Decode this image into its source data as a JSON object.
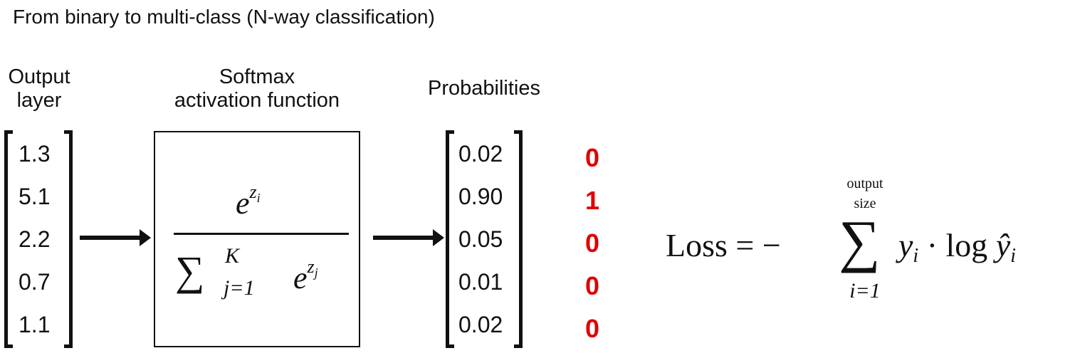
{
  "title": "From binary to multi-class (N-way classification)",
  "headers": {
    "output": [
      "Output",
      "layer"
    ],
    "softmax": [
      "Softmax",
      "activation function"
    ],
    "probabilities": "Probabilities"
  },
  "output_layer": [
    "1.3",
    "5.1",
    "2.2",
    "0.7",
    "1.1"
  ],
  "probabilities": [
    "0.02",
    "0.90",
    "0.05",
    "0.01",
    "0.02"
  ],
  "labels": [
    "0",
    "1",
    "0",
    "0",
    "0"
  ],
  "colors": {
    "label": "#e00000"
  },
  "softmax_formula": {
    "num_base": "e",
    "num_exp": "z",
    "num_exp_sub": "i",
    "sum": "∑",
    "upper": "K",
    "lower": "j=1",
    "den_base": "e",
    "den_exp": "z",
    "den_exp_sub": "j"
  },
  "loss_formula": {
    "lhs": "Loss = −",
    "sum": "∑",
    "upper_1": "output",
    "upper_2": "size",
    "lower": "i=1",
    "rhs": "y",
    "rhs_sub": "i",
    "rhs_dot": " · log ",
    "rhs_hat": "ŷ",
    "rhs_hat_sub": "i"
  }
}
